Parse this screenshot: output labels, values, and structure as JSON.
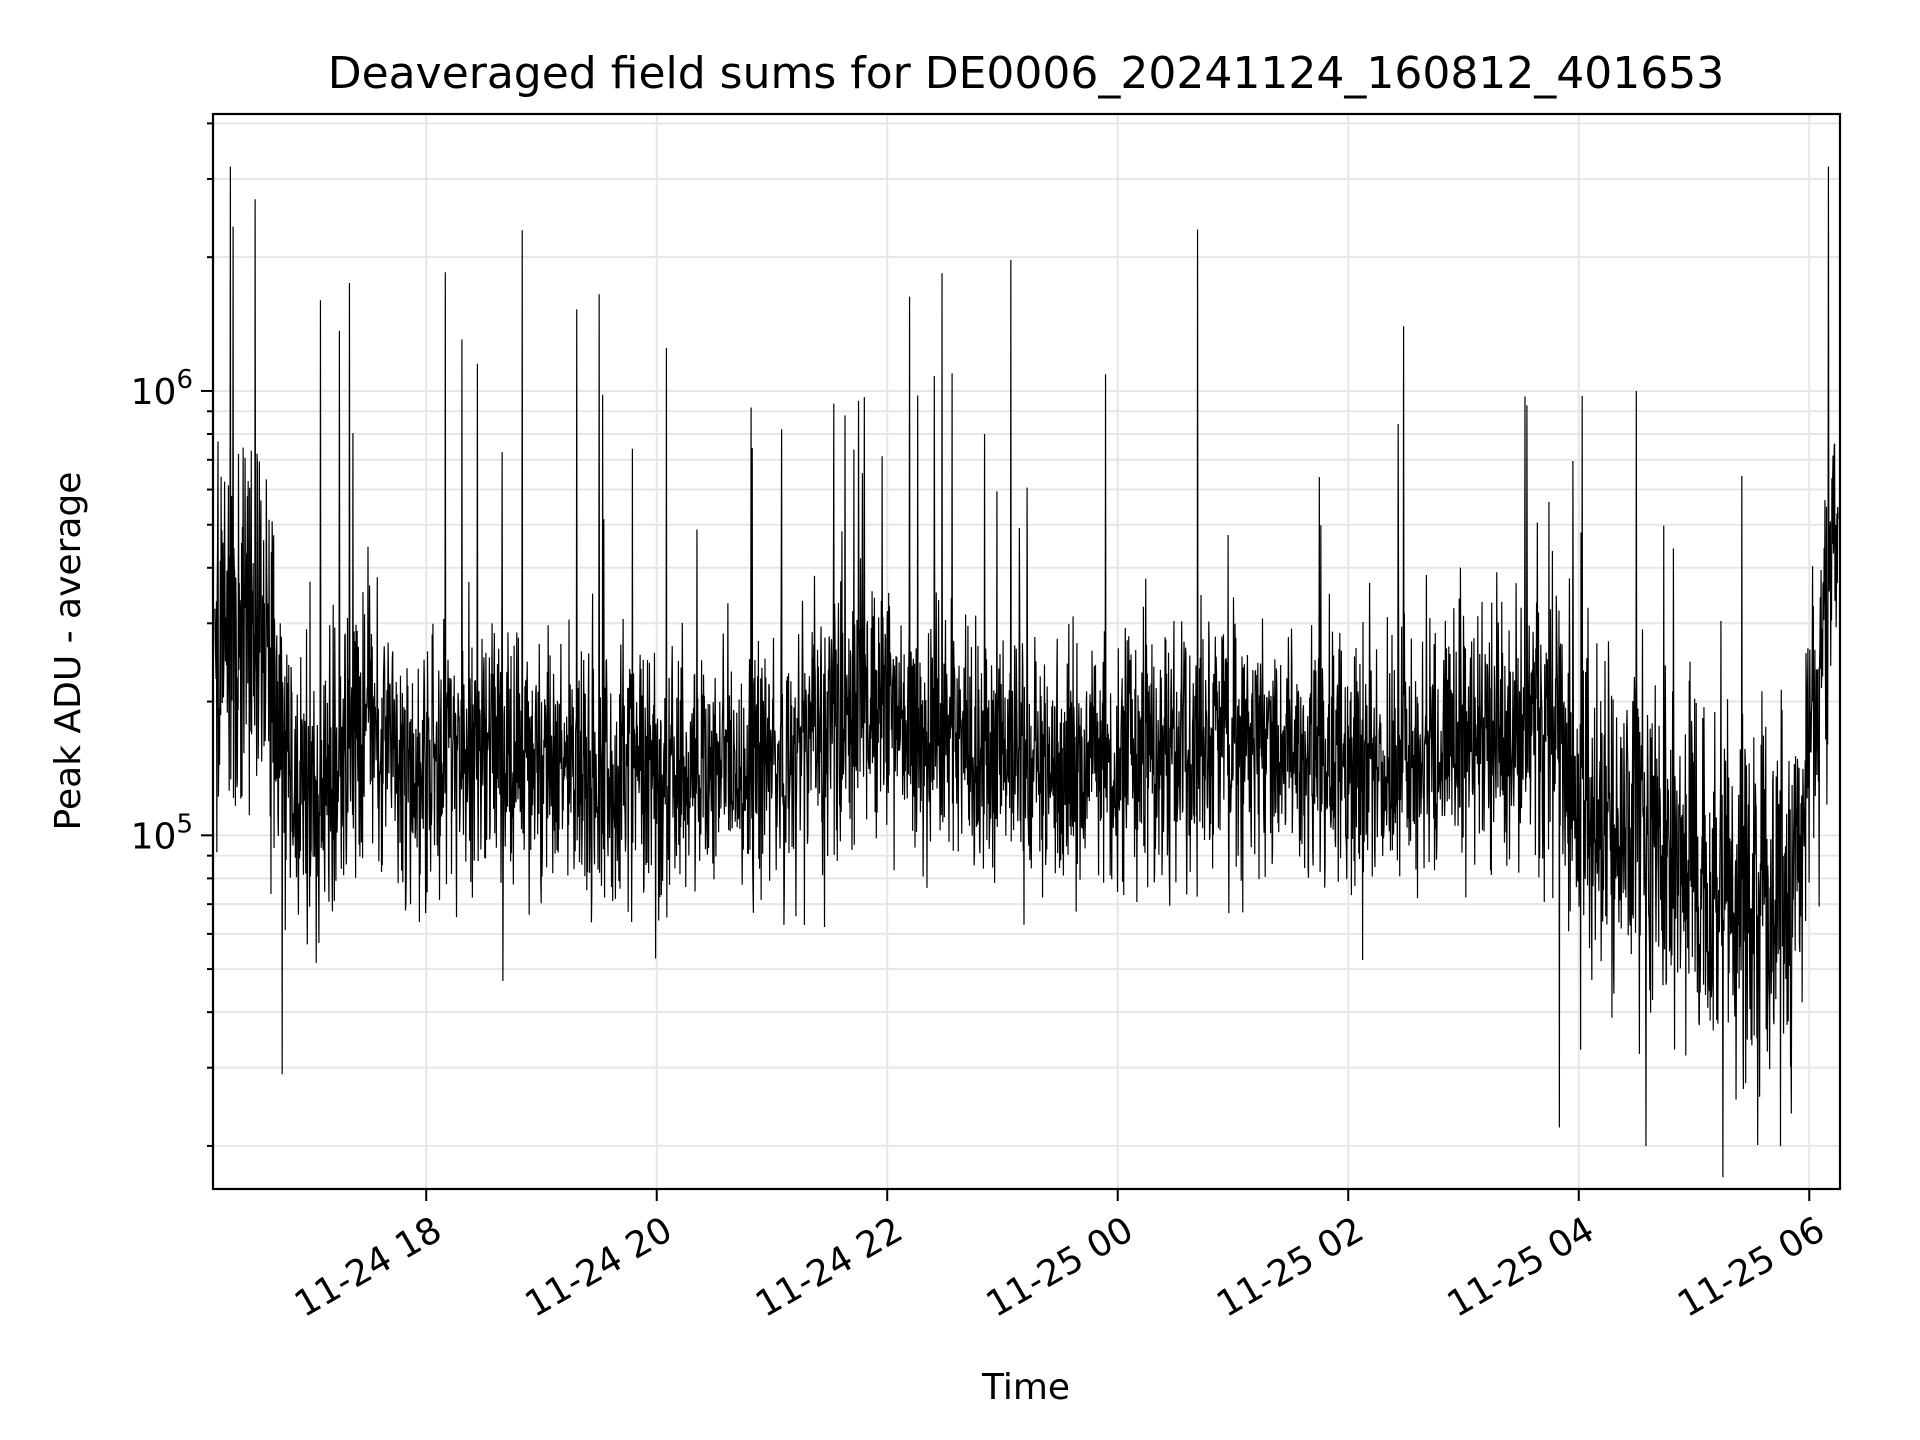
{
  "chart_data": {
    "type": "line",
    "title": "Deaveraged field sums for DE0006_20241124_160812_401653",
    "xlabel": "Time",
    "ylabel": "Peak ADU - average",
    "x_range": [
      "2024-11-24 16:09",
      "2024-11-25 06:16"
    ],
    "xlim": [
      "2024-11-24 16:09",
      "2024-11-25 06:16"
    ],
    "ylim": [
      16000,
      4200000
    ],
    "yscale": "log",
    "grid": true,
    "color": "#000000",
    "x_ticks": [
      {
        "time": "2024-11-24 18:00",
        "label": "11-24 18"
      },
      {
        "time": "2024-11-24 20:00",
        "label": "11-24 20"
      },
      {
        "time": "2024-11-24 22:00",
        "label": "11-24 22"
      },
      {
        "time": "2024-11-25 00:00",
        "label": "11-25 00"
      },
      {
        "time": "2024-11-25 02:00",
        "label": "11-25 02"
      },
      {
        "time": "2024-11-25 04:00",
        "label": "11-25 04"
      },
      {
        "time": "2024-11-25 06:00",
        "label": "11-25 06"
      }
    ],
    "y_ticks": [
      {
        "value": 100000,
        "base": "10",
        "exp": "5"
      },
      {
        "value": 1000000,
        "base": "10",
        "exp": "6"
      }
    ],
    "series": [
      {
        "x": [
          "2024-11-24 16:10",
          "2024-11-24 16:20",
          "2024-11-24 16:30",
          "2024-11-24 16:40",
          "2024-11-24 16:50",
          "2024-11-24 17:00",
          "2024-11-24 17:15",
          "2024-11-24 17:30",
          "2024-11-24 17:45",
          "2024-11-24 18:00",
          "2024-11-24 18:30",
          "2024-11-24 19:00",
          "2024-11-24 19:30",
          "2024-11-24 20:00",
          "2024-11-24 20:30",
          "2024-11-24 21:00",
          "2024-11-24 21:30",
          "2024-11-24 22:00",
          "2024-11-24 22:30",
          "2024-11-24 23:00",
          "2024-11-24 23:30",
          "2024-11-25 00:00",
          "2024-11-25 00:30",
          "2024-11-25 01:00",
          "2024-11-25 01:30",
          "2024-11-25 02:00",
          "2024-11-25 02:30",
          "2024-11-25 03:00",
          "2024-11-25 03:30",
          "2024-11-25 03:45",
          "2024-11-25 04:00",
          "2024-11-25 04:30",
          "2024-11-25 05:00",
          "2024-11-25 05:30",
          "2024-11-25 05:50",
          "2024-11-25 06:00",
          "2024-11-25 06:10",
          "2024-11-25 06:15"
        ],
        "y": [
          220000,
          260000,
          300000,
          230000,
          140000,
          120000,
          140000,
          170000,
          150000,
          150000,
          160000,
          155000,
          140000,
          130000,
          150000,
          140000,
          180000,
          190000,
          160000,
          150000,
          140000,
          150000,
          160000,
          170000,
          150000,
          140000,
          150000,
          160000,
          180000,
          170000,
          120000,
          100000,
          80000,
          70000,
          70000,
          150000,
          350000,
          500000
        ],
        "spread_log10": [
          0.35,
          0.45,
          0.45,
          0.4,
          0.35,
          0.35,
          0.3,
          0.3,
          0.3,
          0.3,
          0.28,
          0.28,
          0.28,
          0.28,
          0.28,
          0.28,
          0.3,
          0.3,
          0.28,
          0.28,
          0.28,
          0.28,
          0.3,
          0.28,
          0.28,
          0.28,
          0.28,
          0.28,
          0.3,
          0.35,
          0.38,
          0.4,
          0.42,
          0.42,
          0.4,
          0.35,
          0.35,
          0.3
        ],
        "peaks": [
          {
            "x": "2024-11-24 16:18",
            "y": 3200000
          },
          {
            "x": "2024-11-24 16:31",
            "y": 2700000
          },
          {
            "x": "2024-11-24 17:05",
            "y": 1600000
          },
          {
            "x": "2024-11-24 17:20",
            "y": 1750000
          },
          {
            "x": "2024-11-24 18:10",
            "y": 1850000
          },
          {
            "x": "2024-11-24 18:50",
            "y": 2300000
          },
          {
            "x": "2024-11-24 19:30",
            "y": 1650000
          },
          {
            "x": "2024-11-24 20:05",
            "y": 1250000
          },
          {
            "x": "2024-11-24 21:05",
            "y": 820000
          },
          {
            "x": "2024-11-24 21:45",
            "y": 950000
          },
          {
            "x": "2024-11-25 01:45",
            "y": 640000
          },
          {
            "x": "2024-11-25 04:30",
            "y": 1000000
          },
          {
            "x": "2024-11-25 06:10",
            "y": 3200000
          },
          {
            "x": "2024-11-24 16:45",
            "y": 29000
          },
          {
            "x": "2024-11-24 18:40",
            "y": 47000
          },
          {
            "x": "2024-11-25 03:50",
            "y": 22000
          },
          {
            "x": "2024-11-25 04:35",
            "y": 20000
          },
          {
            "x": "2024-11-25 05:15",
            "y": 17000
          },
          {
            "x": "2024-11-25 05:45",
            "y": 20000
          }
        ]
      }
    ]
  }
}
